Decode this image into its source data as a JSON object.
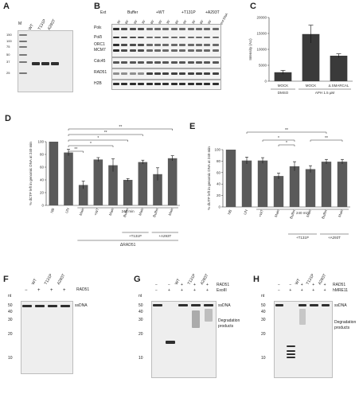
{
  "panels": {
    "A": {
      "label": "A",
      "marker_lane": "M",
      "lanes": [
        "WT",
        "T131P",
        "A293T"
      ],
      "kda": [
        "150",
        "100",
        "75",
        "50",
        "37",
        "25"
      ]
    },
    "B": {
      "label": "B",
      "groups": [
        "Ext",
        "Buffer",
        "+WT",
        "+T131P",
        "+A293T"
      ],
      "times": [
        "30'",
        "60'",
        "90'",
        "30'",
        "60'",
        "90'",
        "30'",
        "60'",
        "90'",
        "30'",
        "60'",
        "90'"
      ],
      "right_label": "Input DNA",
      "rows": [
        "Polε",
        "Polδ",
        "ORC1",
        "MCM7",
        "Cdc45",
        "RAD51",
        "H2B"
      ]
    },
    "C": {
      "label": "C",
      "ylabel": "Intensity (AU)",
      "yticks": [
        "0",
        "5000",
        "10000",
        "15000",
        "20000"
      ],
      "bars": [
        "MOCK",
        "MOCK",
        "Δ SMARCAL"
      ],
      "group_labels": [
        "DMSO",
        "APH 1.5 µM"
      ]
    },
    "D": {
      "label": "D",
      "ylabel": "% dCTP left in genomic DNA at 240 min",
      "yticks": [
        "0",
        "20",
        "40",
        "60",
        "80",
        "100"
      ],
      "sig": [
        "**",
        "**",
        "*",
        "*",
        "**"
      ],
      "xlabels": [
        "NB",
        "UN",
        "Main",
        "+WT",
        "Main",
        "Buffer",
        "Main",
        "Buffer",
        "Main"
      ],
      "time_label": "240 min",
      "groups": [
        "+T131P",
        "+A293T"
      ],
      "bottom": "ΔRAD51"
    },
    "E": {
      "label": "E",
      "ylabel": "% dUTP left in genomic DNA at 240 min",
      "yticks": [
        "0",
        "20",
        "40",
        "60",
        "80",
        "100"
      ],
      "sig": [
        "**",
        "*",
        "*",
        "**"
      ],
      "xlabels": [
        "NB",
        "UN",
        "+WT",
        "Main",
        "Buffer",
        "Main",
        "Buffer",
        "Main"
      ],
      "time_label": "240 min",
      "groups": [
        "+T131P",
        "+A293T"
      ]
    },
    "F": {
      "label": "F",
      "lanes": [
        "WT",
        "T131P",
        "A293T"
      ],
      "protein": "RAD51",
      "signs": [
        "−",
        "+",
        "+",
        "+"
      ],
      "nt": [
        "nt",
        "50",
        "40",
        "30",
        "20",
        "10"
      ],
      "band_label": "ssDNA"
    },
    "G": {
      "label": "G",
      "lanes": [
        "WT",
        "T131P",
        "A293T"
      ],
      "rows": [
        "RAD51",
        "ExoIII"
      ],
      "signs1": [
        "−",
        "−",
        "+",
        "+",
        "+"
      ],
      "signs2": [
        "−",
        "+",
        "+",
        "+",
        "+"
      ],
      "nt": [
        "nt",
        "50",
        "40",
        "30",
        "20",
        "10"
      ],
      "band_label": "ssDNA",
      "products_label": "Degradation products"
    },
    "H": {
      "label": "H",
      "lanes": [
        "WT",
        "T131P",
        "A293T"
      ],
      "rows": [
        "RAD51",
        "hMRE11"
      ],
      "signs1": [
        "−",
        "−",
        "+",
        "+",
        "+"
      ],
      "signs2": [
        "−",
        "+",
        "+",
        "+",
        "+"
      ],
      "nt": [
        "nt",
        "50",
        "40",
        "30",
        "20",
        "10"
      ],
      "band_label": "ssDNA",
      "products_label": "Degradation products"
    }
  },
  "chart_data": [
    {
      "panel": "C",
      "type": "bar",
      "categories": [
        "MOCK",
        "MOCK",
        "Δ SMARCAL"
      ],
      "values": [
        2800,
        14800,
        8000
      ],
      "errors": [
        600,
        2800,
        600
      ],
      "ylim": [
        0,
        20000
      ],
      "ylabel": "Intensity (AU)",
      "colors": [
        "#3a3a3a",
        "#3a3a3a",
        "#3a3a3a"
      ]
    },
    {
      "panel": "D",
      "type": "bar",
      "categories": [
        "NB",
        "UN",
        "Main",
        "+WT",
        "Main",
        "Buffer",
        "Main",
        "Buffer",
        "Main"
      ],
      "values": [
        100,
        83,
        32,
        72,
        63,
        40,
        68,
        49,
        74
      ],
      "errors": [
        0,
        5,
        6,
        3,
        10,
        2,
        3,
        10,
        4
      ],
      "ylim": [
        0,
        100
      ],
      "ylabel": "% dCTP left in genomic DNA at 240 min"
    },
    {
      "panel": "E",
      "type": "bar",
      "categories": [
        "NB",
        "UN",
        "+WT",
        "Main",
        "Buffer",
        "Main",
        "Buffer",
        "Main"
      ],
      "values": [
        100,
        81,
        81,
        54,
        71,
        66,
        79,
        79
      ],
      "errors": [
        0,
        6,
        5,
        5,
        8,
        6,
        4,
        4
      ],
      "ylim": [
        0,
        100
      ],
      "ylabel": "% dUTP left in genomic DNA at 240 min"
    }
  ]
}
